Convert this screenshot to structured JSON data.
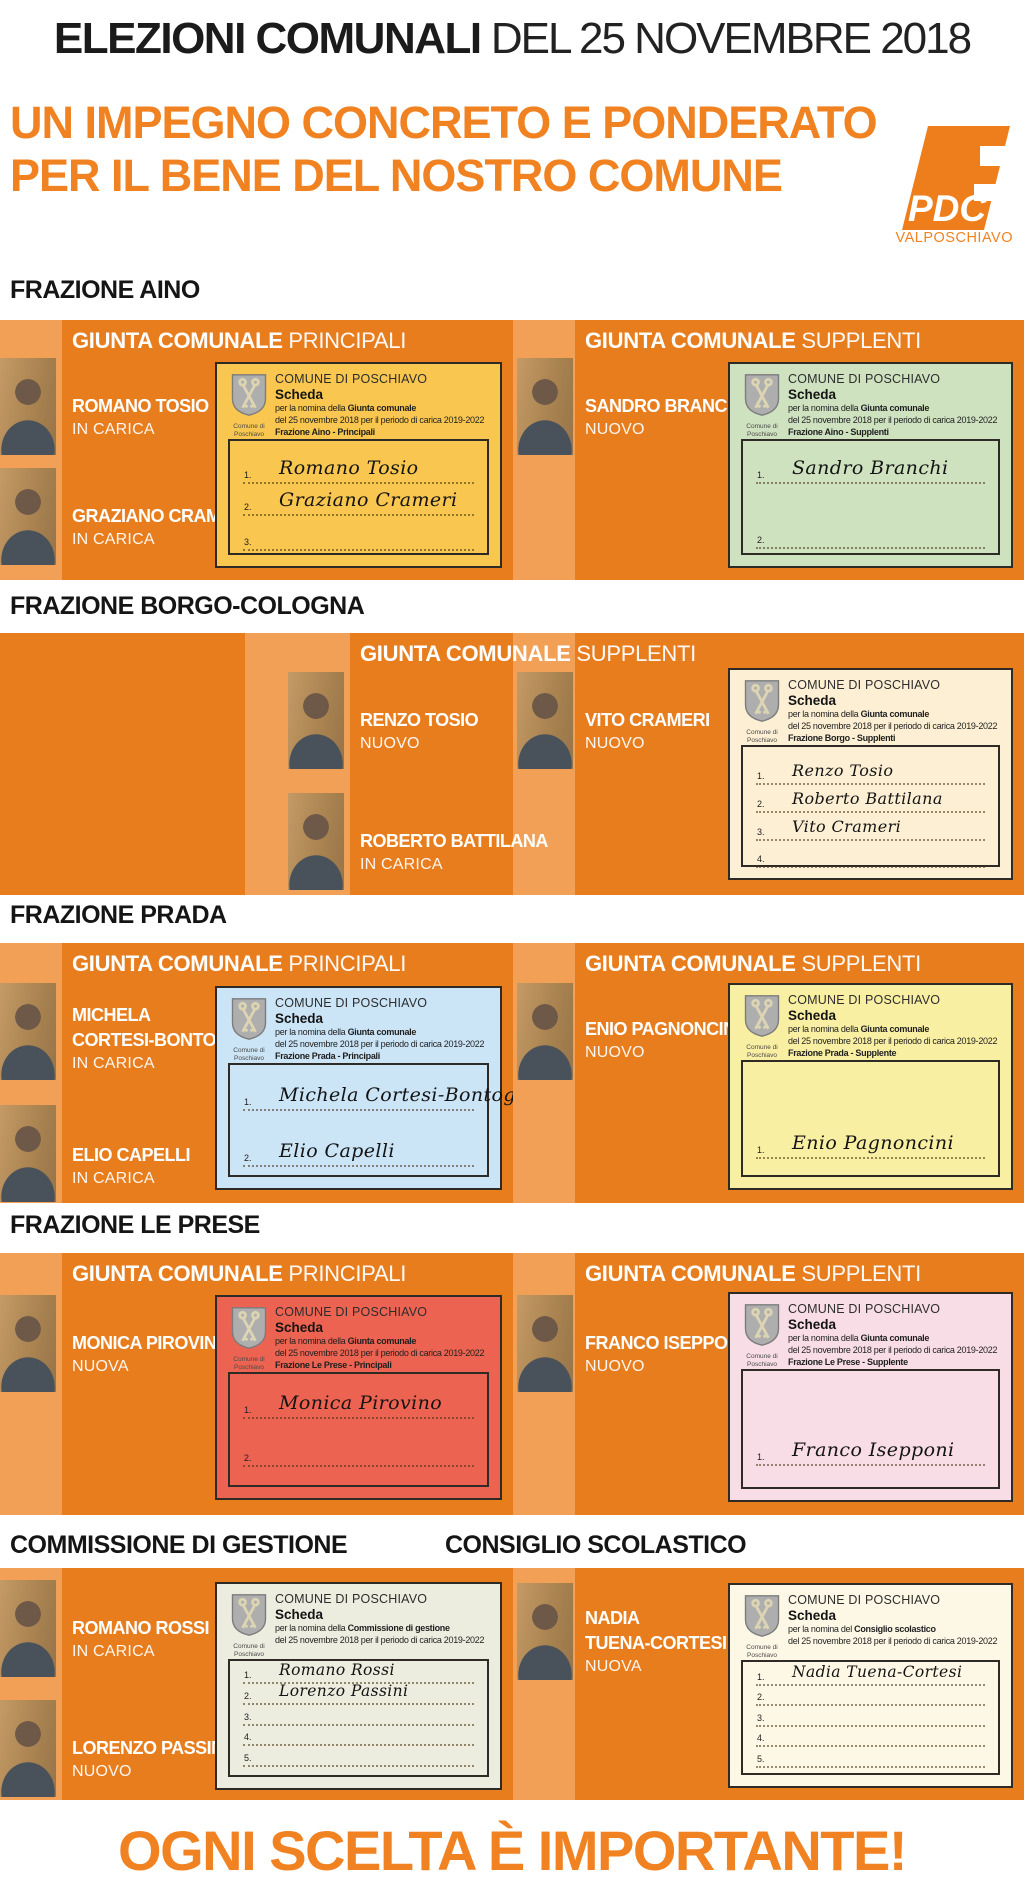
{
  "header": {
    "title_bold": "ELEZIONI COMUNALI",
    "title_rest": " DEL 25 NOVEMBRE 2018",
    "headline1": "UN IMPEGNO CONCRETO E PONDERATO",
    "headline2": "PER IL BENE DEL NOSTRO COMUNE"
  },
  "logo": {
    "name": "PDC",
    "region": "VALPOSCHIAVO"
  },
  "footer": {
    "text": "OGNI SCELTA È IMPORTANTE!"
  },
  "colors": {
    "panel_orange": "#e87d1e",
    "light_orange": "#f1a055",
    "accent_orange": "#f18222",
    "yellow_card": "#f9c74f",
    "green_card": "#cfe2c0",
    "cream_card": "#fcefd3",
    "blue_card": "#cbe4f6",
    "pale_yellow_card": "#f9efa3",
    "red_card": "#ed6351",
    "pink_card": "#f8dde6",
    "gray_card": "#ececdf",
    "ivory_card": "#fdf8e6"
  },
  "ballot_common": {
    "commune": "COMUNE DI POSCHIAVO",
    "scheda": "Scheda",
    "date_line": "del 25 novembre 2018 per il periodo di carica 2019-2022",
    "arms_caption_1": "Comune di",
    "arms_caption_2": "Poschiavo"
  },
  "sections": [
    {
      "title": "FRAZIONE AINO",
      "panels": [
        {
          "header_bold": "GIUNTA COMUNALE",
          "header_light": "PRINCIPALI",
          "people": [
            {
              "name_lines": [
                "ROMANO TOSIO"
              ],
              "status": "IN CARICA"
            },
            {
              "name_lines": [
                "GRAZIANO CRAMERI"
              ],
              "status": "IN CARICA"
            }
          ],
          "card": {
            "color_key": "yellow_card",
            "nomina_prefix": "per la nomina della",
            "nomina_bold": "Giunta comunale",
            "frazione": "Frazione Aino - Principali",
            "lines": [
              {
                "num": "1.",
                "name": "Romano Tosio"
              },
              {
                "num": "2.",
                "name": "Graziano Crameri"
              },
              {
                "num": "3.",
                "name": ""
              }
            ]
          }
        },
        {
          "header_bold": "GIUNTA COMUNALE",
          "header_light": "SUPPLENTI",
          "people": [
            {
              "name_lines": [
                "SANDRO BRANCHI"
              ],
              "status": "NUOVO"
            }
          ],
          "card": {
            "color_key": "green_card",
            "nomina_prefix": "per la nomina della",
            "nomina_bold": "Giunta comunale",
            "frazione": "Frazione Aino - Supplenti",
            "lines": [
              {
                "num": "1.",
                "name": "Sandro Branchi"
              },
              {
                "num": "2.",
                "name": ""
              }
            ]
          }
        }
      ]
    },
    {
      "title": "FRAZIONE BORGO-COLOGNA",
      "panels": [
        {
          "header_bold": "GIUNTA COMUNALE",
          "header_light": "SUPPLENTI",
          "people": [
            {
              "name_lines": [
                "RENZO TOSIO"
              ],
              "status": "NUOVO"
            },
            {
              "name_lines": [
                "ROBERTO BATTILANA"
              ],
              "status": "IN CARICA"
            },
            {
              "name_lines": [
                "VITO CRAMERI"
              ],
              "status": "NUOVO"
            }
          ],
          "card": {
            "color_key": "cream_card",
            "nomina_prefix": "per la nomina della",
            "nomina_bold": "Giunta comunale",
            "frazione": "Frazione Borgo - Supplenti",
            "lines": [
              {
                "num": "1.",
                "name": "Renzo Tosio"
              },
              {
                "num": "2.",
                "name": "Roberto Battilana"
              },
              {
                "num": "3.",
                "name": "Vito Crameri"
              },
              {
                "num": "4.",
                "name": ""
              }
            ]
          }
        }
      ]
    },
    {
      "title": "FRAZIONE PRADA",
      "panels": [
        {
          "header_bold": "GIUNTA COMUNALE",
          "header_light": "PRINCIPALI",
          "people": [
            {
              "name_lines": [
                "MICHELA",
                "CORTESI-BONTOGNALI"
              ],
              "status": "IN CARICA"
            },
            {
              "name_lines": [
                "ELIO CAPELLI"
              ],
              "status": "IN CARICA"
            }
          ],
          "card": {
            "color_key": "blue_card",
            "nomina_prefix": "per la nomina della",
            "nomina_bold": "Giunta comunale",
            "frazione": "Frazione Prada - Principali",
            "lines": [
              {
                "num": "1.",
                "name": "Michela Cortesi-Bontognali"
              },
              {
                "num": "2.",
                "name": "Elio Capelli"
              }
            ]
          }
        },
        {
          "header_bold": "GIUNTA COMUNALE",
          "header_light": "SUPPLENTI",
          "people": [
            {
              "name_lines": [
                "ENIO PAGNONCINI"
              ],
              "status": "NUOVO"
            }
          ],
          "card": {
            "color_key": "pale_yellow_card",
            "nomina_prefix": "per la nomina della",
            "nomina_bold": "Giunta comunale",
            "frazione": "Frazione Prada - Supplente",
            "lines": [
              {
                "num": "1.",
                "name": "Enio Pagnoncini"
              }
            ]
          }
        }
      ]
    },
    {
      "title": "FRAZIONE LE PRESE",
      "panels": [
        {
          "header_bold": "GIUNTA COMUNALE",
          "header_light": "PRINCIPALI",
          "people": [
            {
              "name_lines": [
                "MONICA PIROVINO"
              ],
              "status": "NUOVA"
            }
          ],
          "card": {
            "color_key": "red_card",
            "nomina_prefix": "per la nomina della",
            "nomina_bold": "Giunta comunale",
            "frazione": "Frazione Le Prese - Principali",
            "lines": [
              {
                "num": "1.",
                "name": "Monica Pirovino"
              },
              {
                "num": "2.",
                "name": ""
              }
            ]
          }
        },
        {
          "header_bold": "GIUNTA COMUNALE",
          "header_light": "SUPPLENTI",
          "people": [
            {
              "name_lines": [
                "FRANCO ISEPPONI"
              ],
              "status": "NUOVO"
            }
          ],
          "card": {
            "color_key": "pink_card",
            "nomina_prefix": "per la nomina della",
            "nomina_bold": "Giunta comunale",
            "frazione": "Frazione Le Prese - Supplente",
            "lines": [
              {
                "num": "1.",
                "name": "Franco Isepponi"
              }
            ]
          }
        }
      ]
    },
    {
      "title": "COMMISSIONE DI GESTIONE",
      "title2": "CONSIGLIO SCOLASTICO",
      "panels": [
        {
          "people": [
            {
              "name_lines": [
                "ROMANO ROSSI"
              ],
              "status": "IN CARICA"
            },
            {
              "name_lines": [
                "LORENZO PASSINI"
              ],
              "status": "NUOVO"
            }
          ],
          "card": {
            "color_key": "gray_card",
            "nomina_prefix": "per la nomina della",
            "nomina_bold": "Commissione di gestione",
            "frazione": null,
            "lines": [
              {
                "num": "1.",
                "name": "Romano Rossi"
              },
              {
                "num": "2.",
                "name": "Lorenzo Passini"
              },
              {
                "num": "3.",
                "name": ""
              },
              {
                "num": "4.",
                "name": ""
              },
              {
                "num": "5.",
                "name": ""
              }
            ]
          }
        },
        {
          "people": [
            {
              "name_lines": [
                "NADIA",
                "TUENA-CORTESI"
              ],
              "status": "NUOVA"
            }
          ],
          "card": {
            "color_key": "ivory_card",
            "nomina_prefix": "per la nomina del",
            "nomina_bold": "Consiglio scolastico",
            "frazione": null,
            "lines": [
              {
                "num": "1.",
                "name": "Nadia Tuena-Cortesi"
              },
              {
                "num": "2.",
                "name": ""
              },
              {
                "num": "3.",
                "name": ""
              },
              {
                "num": "4.",
                "name": ""
              },
              {
                "num": "5.",
                "name": ""
              }
            ]
          }
        }
      ]
    }
  ]
}
